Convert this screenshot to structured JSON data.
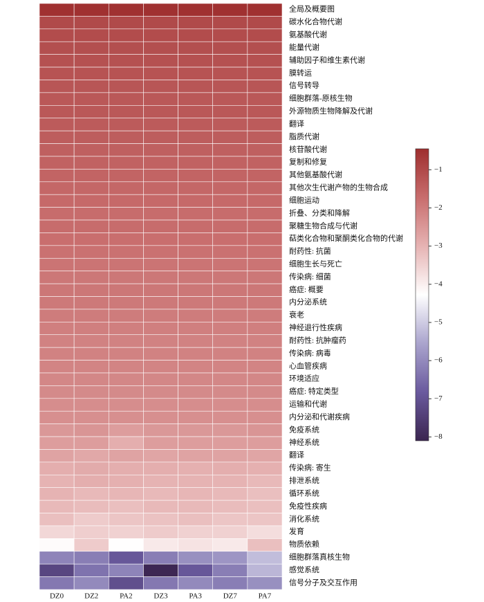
{
  "chart_data": {
    "type": "heatmap",
    "x_categories": [
      "DZ0",
      "DZ2",
      "PA2",
      "DZ3",
      "PA3",
      "DZ7",
      "PA7"
    ],
    "y_categories": [
      "全局及概要图",
      "碳水化合物代谢",
      "氨基酸代谢",
      "能量代谢",
      "辅助因子和维生素代谢",
      "膜转运",
      "信号转导",
      "细胞群落-原核生物",
      "外源物质生物降解及代谢",
      "翻译",
      "脂质代谢",
      "核苷酸代谢",
      "复制和修复",
      "其他氨基酸代谢",
      "其他次生代谢产物的生物合成",
      "细胞运动",
      "折叠、分类和降解",
      "聚糖生物合成与代谢",
      "萜类化合物和聚酮类化合物的代谢",
      "耐药性: 抗菌",
      "细胞生长与死亡",
      "传染病: 细菌",
      "癌症: 概要",
      "内分泌系统",
      "衰老",
      "神经退行性疾病",
      "耐药性: 抗肿瘤药",
      "传染病: 病毒",
      "心血管疾病",
      "环境适应",
      "癌症: 特定类型",
      "运输和代谢",
      "内分泌和代谢疾病",
      "免疫系统",
      "神经系统",
      "翻译",
      "传染病: 寄生",
      "排泄系统",
      "循环系统",
      "免疫性疾病",
      "消化系统",
      "发育",
      "物质依赖",
      "细胞群落真核生物",
      "感觉系统",
      "信号分子及交互作用"
    ],
    "values": [
      [
        -0.5,
        -0.5,
        -0.5,
        -0.5,
        -0.5,
        -0.5,
        -0.5
      ],
      [
        -1.0,
        -1.0,
        -1.0,
        -1.0,
        -1.0,
        -1.0,
        -1.0
      ],
      [
        -1.05,
        -1.05,
        -1.05,
        -1.05,
        -1.05,
        -1.05,
        -1.05
      ],
      [
        -1.1,
        -1.1,
        -1.1,
        -1.1,
        -1.1,
        -1.1,
        -1.1
      ],
      [
        -1.15,
        -1.15,
        -1.15,
        -1.15,
        -1.15,
        -1.15,
        -1.15
      ],
      [
        -1.2,
        -1.2,
        -1.2,
        -1.2,
        -1.2,
        -1.2,
        -1.2
      ],
      [
        -1.25,
        -1.25,
        -1.25,
        -1.25,
        -1.25,
        -1.25,
        -1.25
      ],
      [
        -1.3,
        -1.3,
        -1.3,
        -1.3,
        -1.3,
        -1.3,
        -1.3
      ],
      [
        -1.3,
        -1.3,
        -1.3,
        -1.3,
        -1.3,
        -1.3,
        -1.3
      ],
      [
        -1.35,
        -1.35,
        -1.35,
        -1.35,
        -1.35,
        -1.35,
        -1.35
      ],
      [
        -1.4,
        -1.4,
        -1.4,
        -1.4,
        -1.4,
        -1.4,
        -1.4
      ],
      [
        -1.45,
        -1.45,
        -1.45,
        -1.45,
        -1.45,
        -1.45,
        -1.45
      ],
      [
        -1.5,
        -1.5,
        -1.5,
        -1.5,
        -1.5,
        -1.5,
        -1.5
      ],
      [
        -1.55,
        -1.55,
        -1.55,
        -1.55,
        -1.55,
        -1.55,
        -1.55
      ],
      [
        -1.6,
        -1.6,
        -1.6,
        -1.6,
        -1.6,
        -1.6,
        -1.6
      ],
      [
        -1.65,
        -1.65,
        -1.65,
        -1.65,
        -1.65,
        -1.65,
        -1.65
      ],
      [
        -1.7,
        -1.7,
        -1.7,
        -1.7,
        -1.7,
        -1.7,
        -1.7
      ],
      [
        -1.7,
        -1.7,
        -1.7,
        -1.7,
        -1.7,
        -1.7,
        -1.7
      ],
      [
        -1.75,
        -1.75,
        -1.75,
        -1.75,
        -1.75,
        -1.75,
        -1.75
      ],
      [
        -1.8,
        -1.8,
        -1.8,
        -1.8,
        -1.8,
        -1.8,
        -1.8
      ],
      [
        -1.85,
        -1.85,
        -1.85,
        -1.85,
        -1.85,
        -1.85,
        -1.85
      ],
      [
        -1.9,
        -1.9,
        -1.9,
        -1.9,
        -1.9,
        -1.9,
        -1.9
      ],
      [
        -1.9,
        -1.9,
        -1.9,
        -1.9,
        -1.9,
        -1.9,
        -1.9
      ],
      [
        -1.95,
        -1.95,
        -1.95,
        -1.95,
        -1.95,
        -1.95,
        -1.95
      ],
      [
        -2.0,
        -2.0,
        -2.0,
        -2.0,
        -2.0,
        -2.0,
        -2.0
      ],
      [
        -2.05,
        -2.05,
        -2.05,
        -2.05,
        -2.05,
        -2.05,
        -2.05
      ],
      [
        -2.1,
        -2.1,
        -2.1,
        -2.1,
        -2.1,
        -2.1,
        -2.1
      ],
      [
        -2.1,
        -2.1,
        -2.1,
        -2.1,
        -2.1,
        -2.1,
        -2.1
      ],
      [
        -2.15,
        -2.15,
        -2.15,
        -2.15,
        -2.15,
        -2.15,
        -2.15
      ],
      [
        -2.2,
        -2.2,
        -2.2,
        -2.2,
        -2.2,
        -2.2,
        -2.2
      ],
      [
        -2.25,
        -2.25,
        -2.25,
        -2.25,
        -2.25,
        -2.25,
        -2.25
      ],
      [
        -2.3,
        -2.3,
        -2.3,
        -2.3,
        -2.3,
        -2.3,
        -2.3
      ],
      [
        -2.35,
        -2.35,
        -2.35,
        -2.35,
        -2.35,
        -2.35,
        -2.35
      ],
      [
        -2.5,
        -2.45,
        -2.6,
        -2.5,
        -2.5,
        -2.5,
        -2.45
      ],
      [
        -2.6,
        -2.6,
        -2.9,
        -2.6,
        -2.6,
        -2.6,
        -2.6
      ],
      [
        -2.7,
        -2.8,
        -2.7,
        -2.75,
        -2.7,
        -2.7,
        -2.75
      ],
      [
        -2.9,
        -2.85,
        -2.9,
        -2.9,
        -2.95,
        -2.9,
        -2.95
      ],
      [
        -3.0,
        -2.9,
        -2.95,
        -3.0,
        -3.0,
        -3.0,
        -3.1
      ],
      [
        -3.0,
        -3.1,
        -3.05,
        -3.1,
        -3.05,
        -3.1,
        -3.2
      ],
      [
        -3.1,
        -3.15,
        -3.2,
        -3.1,
        -3.1,
        -3.15,
        -3.2
      ],
      [
        -3.2,
        -3.4,
        -3.3,
        -3.25,
        -3.2,
        -3.3,
        -3.3
      ],
      [
        -3.6,
        -3.45,
        -3.5,
        -3.4,
        -3.5,
        -3.5,
        -3.7
      ],
      [
        -4.2,
        -3.4,
        -4.25,
        -3.9,
        -3.8,
        -3.9,
        -3.2
      ],
      [
        -6.1,
        -6.2,
        -6.9,
        -6.2,
        -5.9,
        -5.8,
        -5.2
      ],
      [
        -7.3,
        -6.4,
        -6.1,
        -8.05,
        -6.9,
        -6.2,
        -5.3
      ],
      [
        -6.3,
        -6.0,
        -7.1,
        -6.3,
        -6.0,
        -6.2,
        -5.9
      ]
    ],
    "zlim": [
      -8.1,
      -0.45
    ],
    "zticks": [
      {
        "value": -1,
        "label": "−1"
      },
      {
        "value": -2,
        "label": "−2"
      },
      {
        "value": -3,
        "label": "−3"
      },
      {
        "value": -4,
        "label": "−4"
      },
      {
        "value": -5,
        "label": "−5"
      },
      {
        "value": -6,
        "label": "−6"
      },
      {
        "value": -7,
        "label": "−7"
      },
      {
        "value": -8,
        "label": "−8"
      }
    ],
    "colors": [
      "#3b2550",
      "#6a5a9e",
      "#aaa4cd",
      "#ffffff",
      "#e6b3b3",
      "#c86d6d",
      "#9e2f2f"
    ]
  }
}
